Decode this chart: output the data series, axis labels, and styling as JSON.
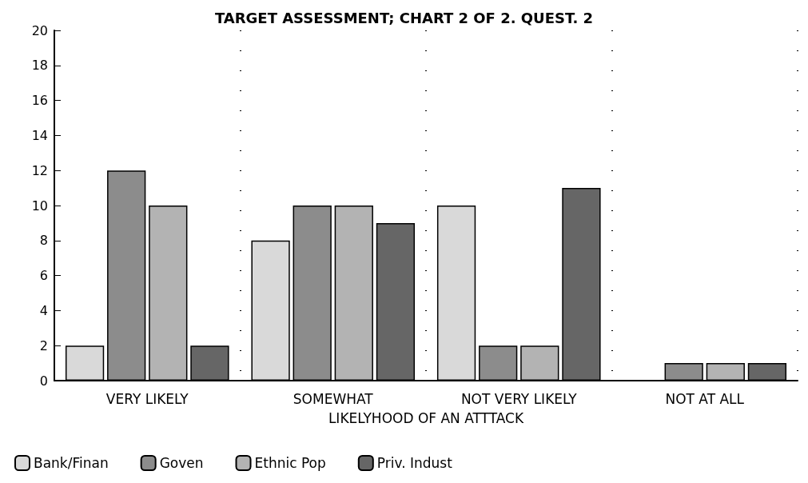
{
  "chart_data": {
    "type": "bar",
    "title": "TARGET ASSESSMENT; CHART 2 OF 2. QUEST. 2",
    "xlabel": "LIKELYHOOD OF AN ATTTACK",
    "categories": [
      "VERY LIKELY",
      "SOMEWHAT",
      "NOT VERY LIKELY",
      "NOT AT ALL"
    ],
    "series": [
      {
        "name": "Bank/Finan",
        "color": "#d9d9d9",
        "values": [
          2,
          8,
          10,
          0
        ]
      },
      {
        "name": "Goven",
        "color": "#8c8c8c",
        "values": [
          12,
          10,
          2,
          1
        ]
      },
      {
        "name": "Ethnic Pop",
        "color": "#b3b3b3",
        "values": [
          10,
          10,
          2,
          1
        ]
      },
      {
        "name": "Priv. Indust",
        "color": "#666666",
        "values": [
          2,
          9,
          11,
          1
        ]
      }
    ],
    "ylim": [
      0,
      20
    ],
    "yticks": [
      0,
      2,
      4,
      6,
      8,
      10,
      12,
      14,
      16,
      18,
      20
    ],
    "grid": "x",
    "legend": "bottom left"
  }
}
